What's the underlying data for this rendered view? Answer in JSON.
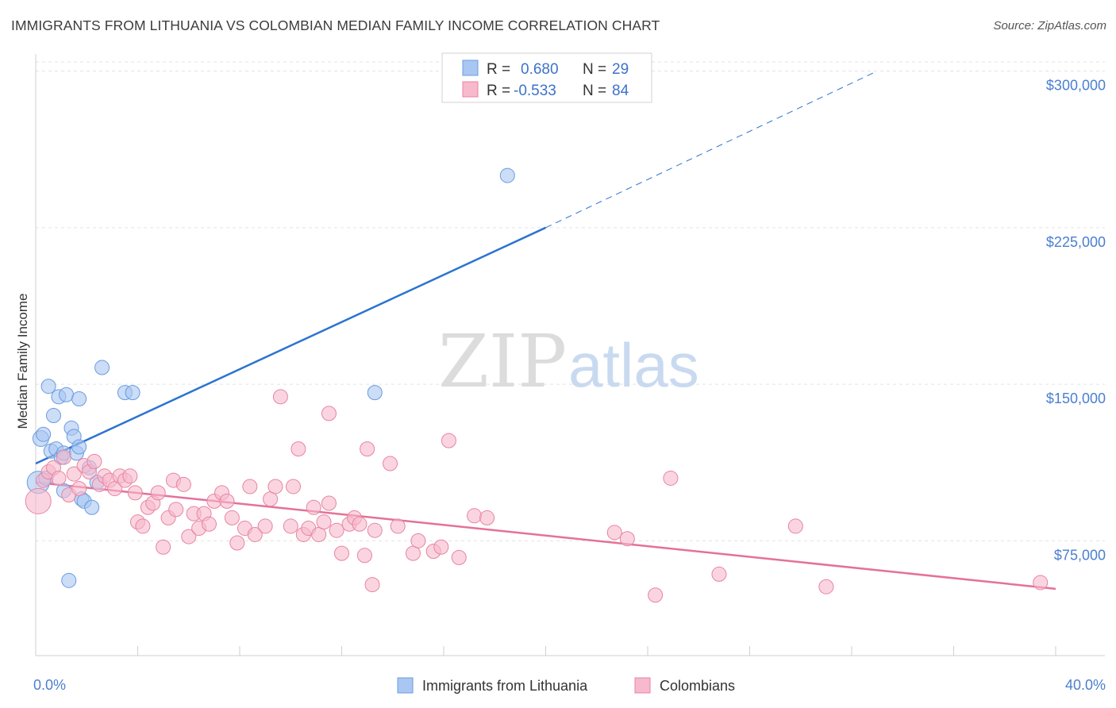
{
  "title": "IMMIGRANTS FROM LITHUANIA VS COLOMBIAN MEDIAN FAMILY INCOME CORRELATION CHART",
  "source": "Source: ZipAtlas.com",
  "watermark": {
    "zip": "ZIP",
    "atlas": "atlas"
  },
  "chart_data": {
    "type": "scatter",
    "ylabel": "Median Family Income",
    "xlim": [
      0,
      40
    ],
    "ylim": [
      20000,
      312000
    ],
    "x_ticks": [
      {
        "value": 0,
        "label": "0.0%"
      },
      {
        "value": 40,
        "label": "40.0%"
      }
    ],
    "y_ticks": [
      {
        "value": 75000,
        "label": "$75,000"
      },
      {
        "value": 150000,
        "label": "$150,000"
      },
      {
        "value": 225000,
        "label": "$225,000"
      },
      {
        "value": 300000,
        "label": "$300,000"
      }
    ],
    "grid": "horizontal-dashed",
    "legend_stats": [
      {
        "r_label": "R =",
        "r_value": "0.680",
        "n_label": "N =",
        "n_value": "29",
        "color": "#a9c7f2",
        "stroke": "#6a9be0"
      },
      {
        "r_label": "R =",
        "r_value": "-0.533",
        "n_label": "N =",
        "n_value": "84",
        "color": "#f7b9cd",
        "stroke": "#e8849f"
      }
    ],
    "series": [
      {
        "name": "Immigrants from Lithuania",
        "color": "#a9c7f2",
        "stroke": "#6a9be0",
        "line_color": "#2c73d2",
        "trend": {
          "x0": 0,
          "y0": 112000,
          "x1": 20,
          "y1": 225000,
          "x_dash_end": 33,
          "y_dash_end": 300000
        },
        "points": [
          [
            0.1,
            103000,
            14
          ],
          [
            0.2,
            124000,
            10
          ],
          [
            0.3,
            126000,
            9
          ],
          [
            0.5,
            149000,
            9
          ],
          [
            0.6,
            118000,
            9
          ],
          [
            0.7,
            135000,
            9
          ],
          [
            0.8,
            119000,
            9
          ],
          [
            0.9,
            144000,
            9
          ],
          [
            1.0,
            115000,
            9
          ],
          [
            1.1,
            117000,
            9
          ],
          [
            1.1,
            99000,
            9
          ],
          [
            1.2,
            145000,
            9
          ],
          [
            1.4,
            129000,
            9
          ],
          [
            1.5,
            125000,
            9
          ],
          [
            1.6,
            117000,
            9
          ],
          [
            1.7,
            120000,
            9
          ],
          [
            1.7,
            143000,
            9
          ],
          [
            1.8,
            95000,
            9
          ],
          [
            1.9,
            94000,
            9
          ],
          [
            2.1,
            110000,
            9
          ],
          [
            2.2,
            91000,
            9
          ],
          [
            2.4,
            103000,
            9
          ],
          [
            2.6,
            158000,
            9
          ],
          [
            3.5,
            146000,
            9
          ],
          [
            3.8,
            146000,
            9
          ],
          [
            13.3,
            146000,
            9
          ],
          [
            18.5,
            250000,
            9
          ],
          [
            1.3,
            56000,
            9
          ],
          [
            0.4,
            105000,
            9
          ]
        ]
      },
      {
        "name": "Colombians",
        "color": "#f7b9cd",
        "stroke": "#e8849f",
        "line_color": "#e4719a",
        "trend": {
          "x0": 0,
          "y0": 103000,
          "x1": 40,
          "y1": 52000
        },
        "points": [
          [
            0.1,
            94000,
            16
          ],
          [
            0.3,
            104000,
            9
          ],
          [
            0.5,
            108000,
            9
          ],
          [
            0.7,
            110000,
            9
          ],
          [
            0.9,
            105000,
            9
          ],
          [
            1.1,
            115000,
            9
          ],
          [
            1.3,
            97000,
            9
          ],
          [
            1.5,
            107000,
            9
          ],
          [
            1.7,
            100000,
            9
          ],
          [
            1.9,
            111000,
            9
          ],
          [
            2.1,
            108000,
            9
          ],
          [
            2.3,
            113000,
            9
          ],
          [
            2.5,
            102000,
            9
          ],
          [
            2.7,
            106000,
            9
          ],
          [
            2.9,
            104000,
            9
          ],
          [
            3.1,
            100000,
            9
          ],
          [
            3.3,
            106000,
            9
          ],
          [
            3.5,
            104000,
            9
          ],
          [
            3.7,
            106000,
            9
          ],
          [
            3.9,
            98000,
            9
          ],
          [
            4.0,
            84000,
            9
          ],
          [
            4.2,
            82000,
            9
          ],
          [
            4.4,
            91000,
            9
          ],
          [
            4.6,
            93000,
            9
          ],
          [
            4.8,
            98000,
            9
          ],
          [
            5.0,
            72000,
            9
          ],
          [
            5.2,
            86000,
            9
          ],
          [
            5.4,
            104000,
            9
          ],
          [
            5.5,
            90000,
            9
          ],
          [
            5.8,
            102000,
            9
          ],
          [
            6.0,
            77000,
            9
          ],
          [
            6.2,
            88000,
            9
          ],
          [
            6.4,
            81000,
            9
          ],
          [
            6.6,
            88000,
            9
          ],
          [
            6.8,
            83000,
            9
          ],
          [
            7.0,
            94000,
            9
          ],
          [
            7.3,
            98000,
            9
          ],
          [
            7.5,
            94000,
            9
          ],
          [
            7.7,
            86000,
            9
          ],
          [
            7.9,
            74000,
            9
          ],
          [
            8.2,
            81000,
            9
          ],
          [
            8.4,
            101000,
            9
          ],
          [
            8.6,
            78000,
            9
          ],
          [
            9.0,
            82000,
            9
          ],
          [
            9.2,
            95000,
            9
          ],
          [
            9.4,
            101000,
            9
          ],
          [
            9.6,
            144000,
            9
          ],
          [
            10.0,
            82000,
            9
          ],
          [
            10.1,
            101000,
            9
          ],
          [
            10.3,
            119000,
            9
          ],
          [
            10.5,
            78000,
            9
          ],
          [
            10.7,
            81000,
            9
          ],
          [
            10.9,
            91000,
            9
          ],
          [
            11.1,
            78000,
            9
          ],
          [
            11.3,
            84000,
            9
          ],
          [
            11.5,
            93000,
            9
          ],
          [
            11.5,
            136000,
            9
          ],
          [
            11.8,
            80000,
            9
          ],
          [
            12.0,
            69000,
            9
          ],
          [
            12.3,
            83000,
            9
          ],
          [
            12.5,
            86000,
            9
          ],
          [
            12.7,
            83000,
            9
          ],
          [
            12.9,
            68000,
            9
          ],
          [
            13.0,
            119000,
            9
          ],
          [
            13.2,
            54000,
            9
          ],
          [
            13.3,
            80000,
            9
          ],
          [
            13.9,
            112000,
            9
          ],
          [
            14.2,
            82000,
            9
          ],
          [
            14.8,
            69000,
            9
          ],
          [
            15.0,
            75000,
            9
          ],
          [
            15.6,
            70000,
            9
          ],
          [
            15.9,
            72000,
            9
          ],
          [
            16.2,
            123000,
            9
          ],
          [
            16.6,
            67000,
            9
          ],
          [
            17.2,
            87000,
            9
          ],
          [
            17.7,
            86000,
            9
          ],
          [
            22.7,
            79000,
            9
          ],
          [
            23.2,
            76000,
            9
          ],
          [
            24.3,
            49000,
            9
          ],
          [
            24.9,
            105000,
            9
          ],
          [
            26.8,
            59000,
            9
          ],
          [
            29.8,
            82000,
            9
          ],
          [
            31.0,
            53000,
            9
          ],
          [
            39.4,
            55000,
            9
          ]
        ]
      }
    ]
  }
}
